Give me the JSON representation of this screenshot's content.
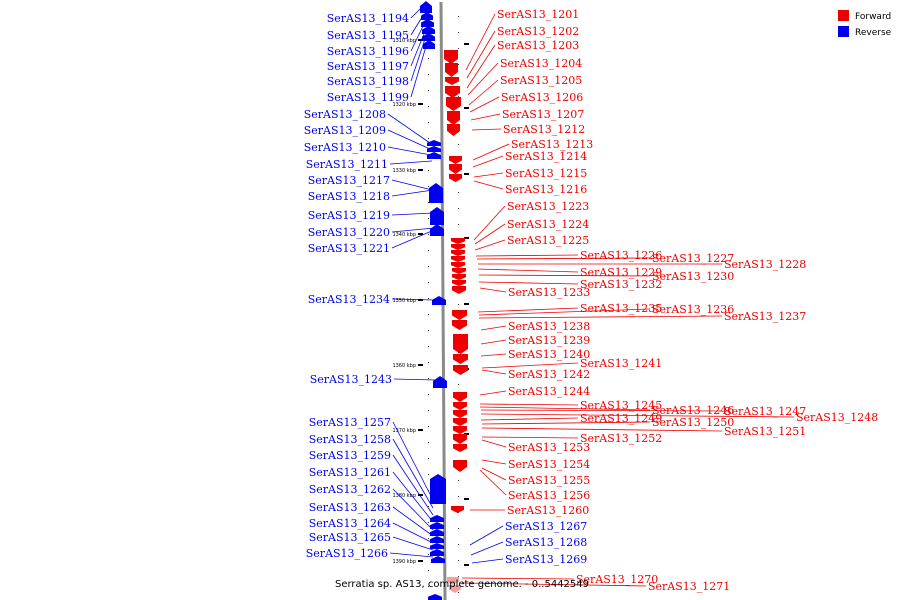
{
  "caption": "Serratia sp. AS13, complete genome. - 0..5442549",
  "legend": [
    {
      "name": "Forward",
      "color": "#ee0000"
    },
    {
      "name": "Reverse",
      "color": "#0000ee"
    }
  ],
  "colors": {
    "forward": "#ee0000",
    "reverse": "#0000ee",
    "forward_light": "#f4a0a0"
  },
  "ticks": [
    "1310 kbp",
    "1320 kbp",
    "1330 kbp",
    "1340 kbp",
    "1350 kbp",
    "1360 kbp",
    "1370 kbp",
    "1380 kbp",
    "1390 kbp"
  ],
  "reverse_labels": [
    "SerAS13_1194",
    "SerAS13_1195",
    "SerAS13_1196",
    "SerAS13_1197",
    "SerAS13_1198",
    "SerAS13_1199",
    "SerAS13_1208",
    "SerAS13_1209",
    "SerAS13_1210",
    "SerAS13_1211",
    "SerAS13_1217",
    "SerAS13_1218",
    "SerAS13_1219",
    "SerAS13_1220",
    "SerAS13_1221",
    "SerAS13_1234",
    "SerAS13_1243",
    "SerAS13_1257",
    "SerAS13_1258",
    "SerAS13_1259",
    "SerAS13_1261",
    "SerAS13_1262",
    "SerAS13_1263",
    "SerAS13_1264",
    "SerAS13_1265",
    "SerAS13_1266"
  ],
  "forward_labels": [
    "SerAS13_1201",
    "SerAS13_1202",
    "SerAS13_1203",
    "SerAS13_1204",
    "SerAS13_1205",
    "SerAS13_1206",
    "SerAS13_1207",
    "SerAS13_1212",
    "SerAS13_1213",
    "SerAS13_1214",
    "SerAS13_1215",
    "SerAS13_1216",
    "SerAS13_1223",
    "SerAS13_1224",
    "SerAS13_1225",
    "SerAS13_1226",
    "SerAS13_1227",
    "SerAS13_1228",
    "SerAS13_1229",
    "SerAS13_1230",
    "SerAS13_1232",
    "SerAS13_1233",
    "SerAS13_1235",
    "SerAS13_1236",
    "SerAS13_1237",
    "SerAS13_1238",
    "SerAS13_1239",
    "SerAS13_1240",
    "SerAS13_1241",
    "SerAS13_1242",
    "SerAS13_1244",
    "SerAS13_1245",
    "SerAS13_1246",
    "SerAS13_1247",
    "SerAS13_1248",
    "SerAS13_1249",
    "SerAS13_1250",
    "SerAS13_1251",
    "SerAS13_1252",
    "SerAS13_1253",
    "SerAS13_1254",
    "SerAS13_1255",
    "SerAS13_1256",
    "SerAS13_1260",
    "SerAS13_1270",
    "SerAS13_1271"
  ],
  "right_reverse_labels": [
    "SerAS13_1267",
    "SerAS13_1268",
    "SerAS13_1269"
  ]
}
